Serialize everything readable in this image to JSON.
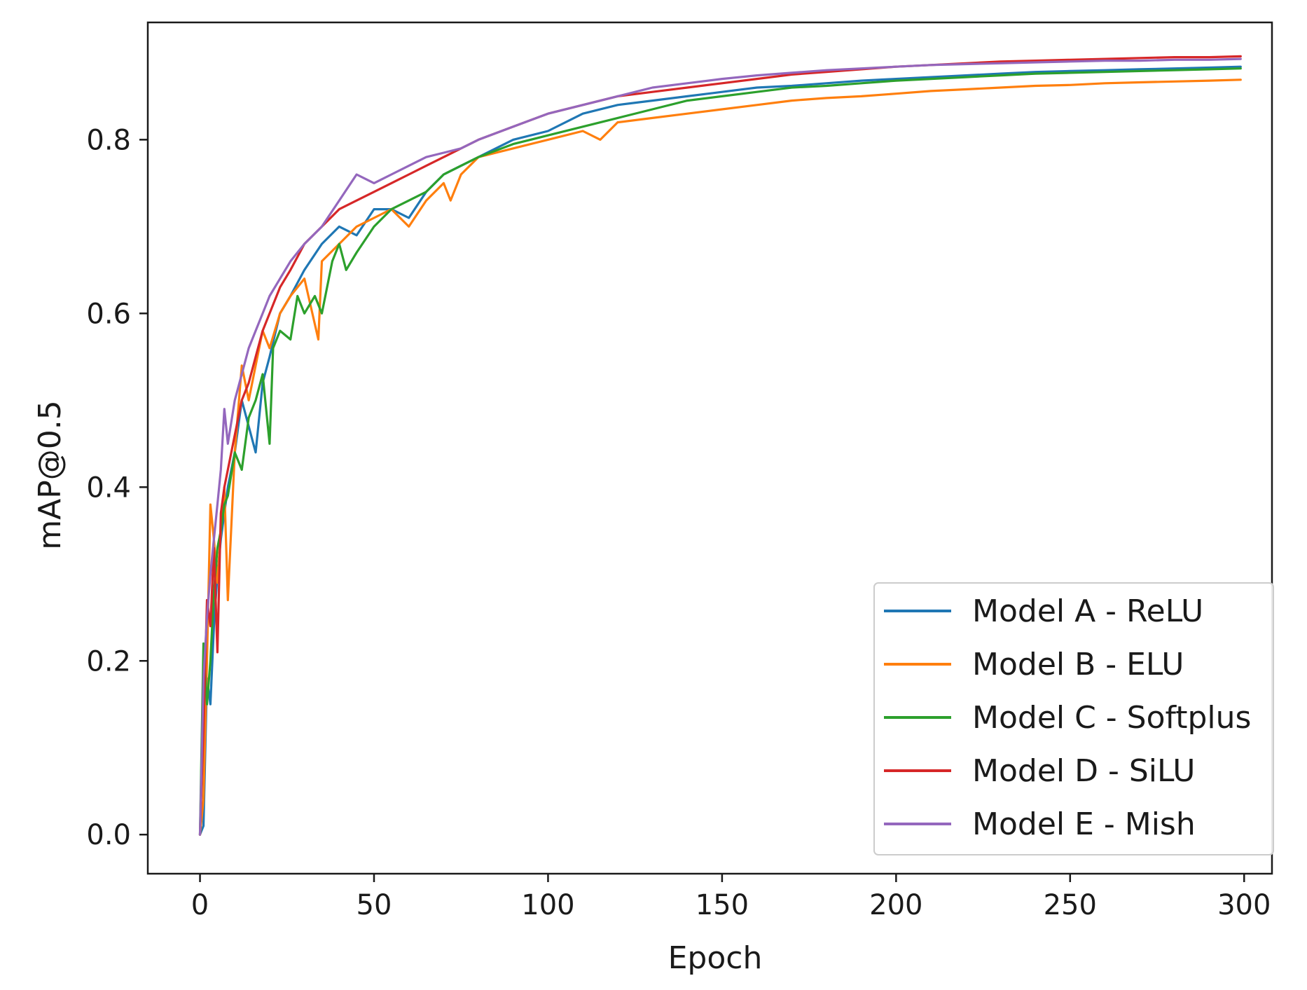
{
  "chart_data": {
    "type": "line",
    "xlabel": "Epoch",
    "ylabel": "mAP@0.5",
    "xlim": [
      -15,
      308
    ],
    "ylim": [
      -0.045,
      0.935
    ],
    "xticks": [
      0,
      50,
      100,
      150,
      200,
      250,
      300
    ],
    "yticks": [
      0.0,
      0.2,
      0.4,
      0.6,
      0.8
    ],
    "xtick_labels": [
      "0",
      "50",
      "100",
      "150",
      "200",
      "250",
      "300"
    ],
    "ytick_labels": [
      "0.0",
      "0.2",
      "0.4",
      "0.6",
      "0.8"
    ],
    "grid": false,
    "legend_position": "lower right",
    "series": [
      {
        "name": "Model A - ReLU",
        "color": "#1f77b4",
        "x": [
          0,
          1,
          2,
          3,
          4,
          5,
          6,
          8,
          10,
          12,
          14,
          16,
          18,
          20,
          23,
          26,
          30,
          35,
          40,
          45,
          50,
          55,
          60,
          65,
          70,
          75,
          80,
          90,
          100,
          110,
          120,
          130,
          140,
          150,
          160,
          170,
          180,
          190,
          200,
          210,
          220,
          230,
          240,
          250,
          260,
          270,
          280,
          290,
          299
        ],
        "y": [
          0.0,
          0.01,
          0.18,
          0.15,
          0.24,
          0.3,
          0.34,
          0.4,
          0.44,
          0.5,
          0.47,
          0.44,
          0.52,
          0.55,
          0.6,
          0.62,
          0.65,
          0.68,
          0.7,
          0.69,
          0.72,
          0.72,
          0.71,
          0.74,
          0.76,
          0.77,
          0.78,
          0.8,
          0.81,
          0.83,
          0.84,
          0.845,
          0.85,
          0.855,
          0.86,
          0.862,
          0.865,
          0.868,
          0.87,
          0.872,
          0.874,
          0.876,
          0.878,
          0.879,
          0.88,
          0.881,
          0.882,
          0.883,
          0.884
        ]
      },
      {
        "name": "Model B - ELU",
        "color": "#ff7f0e",
        "x": [
          0,
          1,
          2,
          3,
          4,
          5,
          6,
          7,
          8,
          10,
          12,
          14,
          16,
          18,
          20,
          23,
          26,
          30,
          34,
          35,
          40,
          45,
          50,
          55,
          60,
          65,
          70,
          72,
          75,
          80,
          90,
          100,
          110,
          115,
          120,
          130,
          140,
          150,
          160,
          170,
          180,
          190,
          200,
          210,
          220,
          230,
          240,
          250,
          260,
          270,
          280,
          290,
          299
        ],
        "y": [
          0.0,
          0.04,
          0.2,
          0.38,
          0.34,
          0.29,
          0.35,
          0.4,
          0.27,
          0.44,
          0.54,
          0.5,
          0.54,
          0.58,
          0.56,
          0.6,
          0.62,
          0.64,
          0.57,
          0.66,
          0.68,
          0.7,
          0.71,
          0.72,
          0.7,
          0.73,
          0.75,
          0.73,
          0.76,
          0.78,
          0.79,
          0.8,
          0.81,
          0.8,
          0.82,
          0.825,
          0.83,
          0.835,
          0.84,
          0.845,
          0.848,
          0.85,
          0.853,
          0.856,
          0.858,
          0.86,
          0.862,
          0.863,
          0.865,
          0.866,
          0.867,
          0.868,
          0.869
        ]
      },
      {
        "name": "Model C - Softplus",
        "color": "#2ca02c",
        "x": [
          0,
          1,
          2,
          3,
          4,
          5,
          6,
          7,
          8,
          10,
          12,
          14,
          16,
          18,
          20,
          21,
          23,
          26,
          28,
          30,
          33,
          35,
          38,
          40,
          42,
          45,
          50,
          55,
          60,
          65,
          70,
          75,
          80,
          90,
          100,
          110,
          120,
          130,
          140,
          150,
          160,
          170,
          180,
          190,
          200,
          210,
          220,
          230,
          240,
          250,
          260,
          270,
          280,
          290,
          299
        ],
        "y": [
          0.0,
          0.22,
          0.15,
          0.2,
          0.28,
          0.33,
          0.35,
          0.38,
          0.39,
          0.44,
          0.42,
          0.48,
          0.5,
          0.53,
          0.45,
          0.56,
          0.58,
          0.57,
          0.62,
          0.6,
          0.62,
          0.6,
          0.66,
          0.68,
          0.65,
          0.67,
          0.7,
          0.72,
          0.73,
          0.74,
          0.76,
          0.77,
          0.78,
          0.795,
          0.805,
          0.815,
          0.825,
          0.835,
          0.845,
          0.85,
          0.855,
          0.86,
          0.862,
          0.865,
          0.868,
          0.87,
          0.872,
          0.874,
          0.876,
          0.877,
          0.878,
          0.879,
          0.88,
          0.881,
          0.882
        ]
      },
      {
        "name": "Model D - SiLU",
        "color": "#d62728",
        "x": [
          0,
          1,
          2,
          3,
          4,
          5,
          6,
          7,
          8,
          10,
          12,
          14,
          16,
          18,
          20,
          23,
          26,
          30,
          35,
          40,
          45,
          50,
          55,
          60,
          65,
          70,
          75,
          80,
          90,
          100,
          110,
          120,
          130,
          140,
          150,
          160,
          170,
          180,
          190,
          200,
          210,
          220,
          230,
          240,
          250,
          260,
          270,
          280,
          290,
          299
        ],
        "y": [
          0.0,
          0.12,
          0.27,
          0.24,
          0.33,
          0.21,
          0.37,
          0.4,
          0.42,
          0.46,
          0.5,
          0.52,
          0.55,
          0.58,
          0.6,
          0.63,
          0.65,
          0.68,
          0.7,
          0.72,
          0.73,
          0.74,
          0.75,
          0.76,
          0.77,
          0.78,
          0.79,
          0.8,
          0.815,
          0.83,
          0.84,
          0.85,
          0.855,
          0.86,
          0.865,
          0.87,
          0.875,
          0.878,
          0.881,
          0.884,
          0.886,
          0.888,
          0.89,
          0.891,
          0.892,
          0.893,
          0.894,
          0.895,
          0.895,
          0.896
        ]
      },
      {
        "name": "Model E - Mish",
        "color": "#9467bd",
        "x": [
          0,
          1,
          2,
          3,
          4,
          5,
          6,
          7,
          8,
          10,
          12,
          14,
          16,
          18,
          20,
          23,
          26,
          30,
          35,
          40,
          45,
          50,
          55,
          60,
          65,
          70,
          75,
          80,
          90,
          100,
          110,
          120,
          130,
          140,
          150,
          160,
          170,
          180,
          190,
          200,
          210,
          220,
          230,
          240,
          250,
          260,
          270,
          280,
          290,
          299
        ],
        "y": [
          0.0,
          0.18,
          0.25,
          0.3,
          0.34,
          0.38,
          0.42,
          0.49,
          0.45,
          0.5,
          0.53,
          0.56,
          0.58,
          0.6,
          0.62,
          0.64,
          0.66,
          0.68,
          0.7,
          0.73,
          0.76,
          0.75,
          0.76,
          0.77,
          0.78,
          0.785,
          0.79,
          0.8,
          0.815,
          0.83,
          0.84,
          0.85,
          0.86,
          0.865,
          0.87,
          0.874,
          0.877,
          0.88,
          0.882,
          0.884,
          0.886,
          0.887,
          0.888,
          0.889,
          0.89,
          0.891,
          0.891,
          0.892,
          0.892,
          0.893
        ]
      }
    ]
  }
}
